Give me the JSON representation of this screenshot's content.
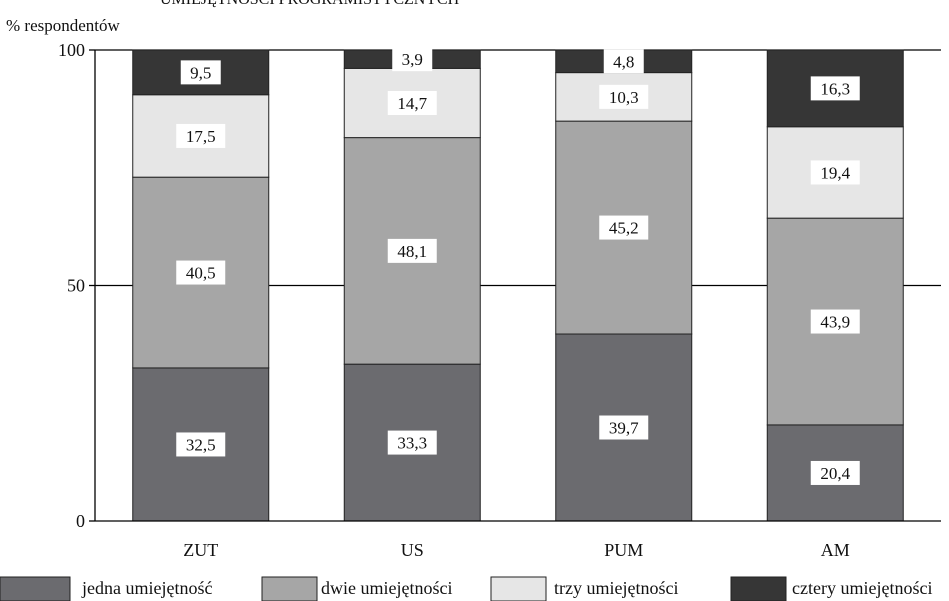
{
  "chart_data": {
    "type": "bar",
    "stacked": true,
    "title": "UMIEJĘTNOŚCI PROGRAMISTYCZNYCH",
    "ylabel": "% respondentów",
    "xlabel": "",
    "ylim": [
      0,
      100
    ],
    "yticks": [
      "0",
      "50",
      "100"
    ],
    "grid": "horizontal at 50 and 100",
    "legend_position": "bottom",
    "categories": [
      "ZUT",
      "US",
      "PUM",
      "AM"
    ],
    "series": [
      {
        "name": "jedna umiejętność",
        "color": "#6b6b6f",
        "values": [
          32.5,
          33.3,
          39.7,
          20.4
        ],
        "labels": [
          "32,5",
          "33,3",
          "39,7",
          "20,4"
        ]
      },
      {
        "name": "dwie umiejętności",
        "color": "#a6a6a6",
        "values": [
          40.5,
          48.1,
          45.2,
          43.9
        ],
        "labels": [
          "40,5",
          "48,1",
          "45,2",
          "43,9"
        ]
      },
      {
        "name": "trzy umiejętności",
        "color": "#e6e6e6",
        "values": [
          17.5,
          14.7,
          10.3,
          19.4
        ],
        "labels": [
          "17,5",
          "14,7",
          "10,3",
          "19,4"
        ]
      },
      {
        "name": "cztery umiejętności",
        "color": "#363636",
        "values": [
          9.5,
          3.9,
          4.8,
          16.3
        ],
        "labels": [
          "9,5",
          "3,9",
          "4,8",
          "16,3"
        ]
      }
    ]
  }
}
